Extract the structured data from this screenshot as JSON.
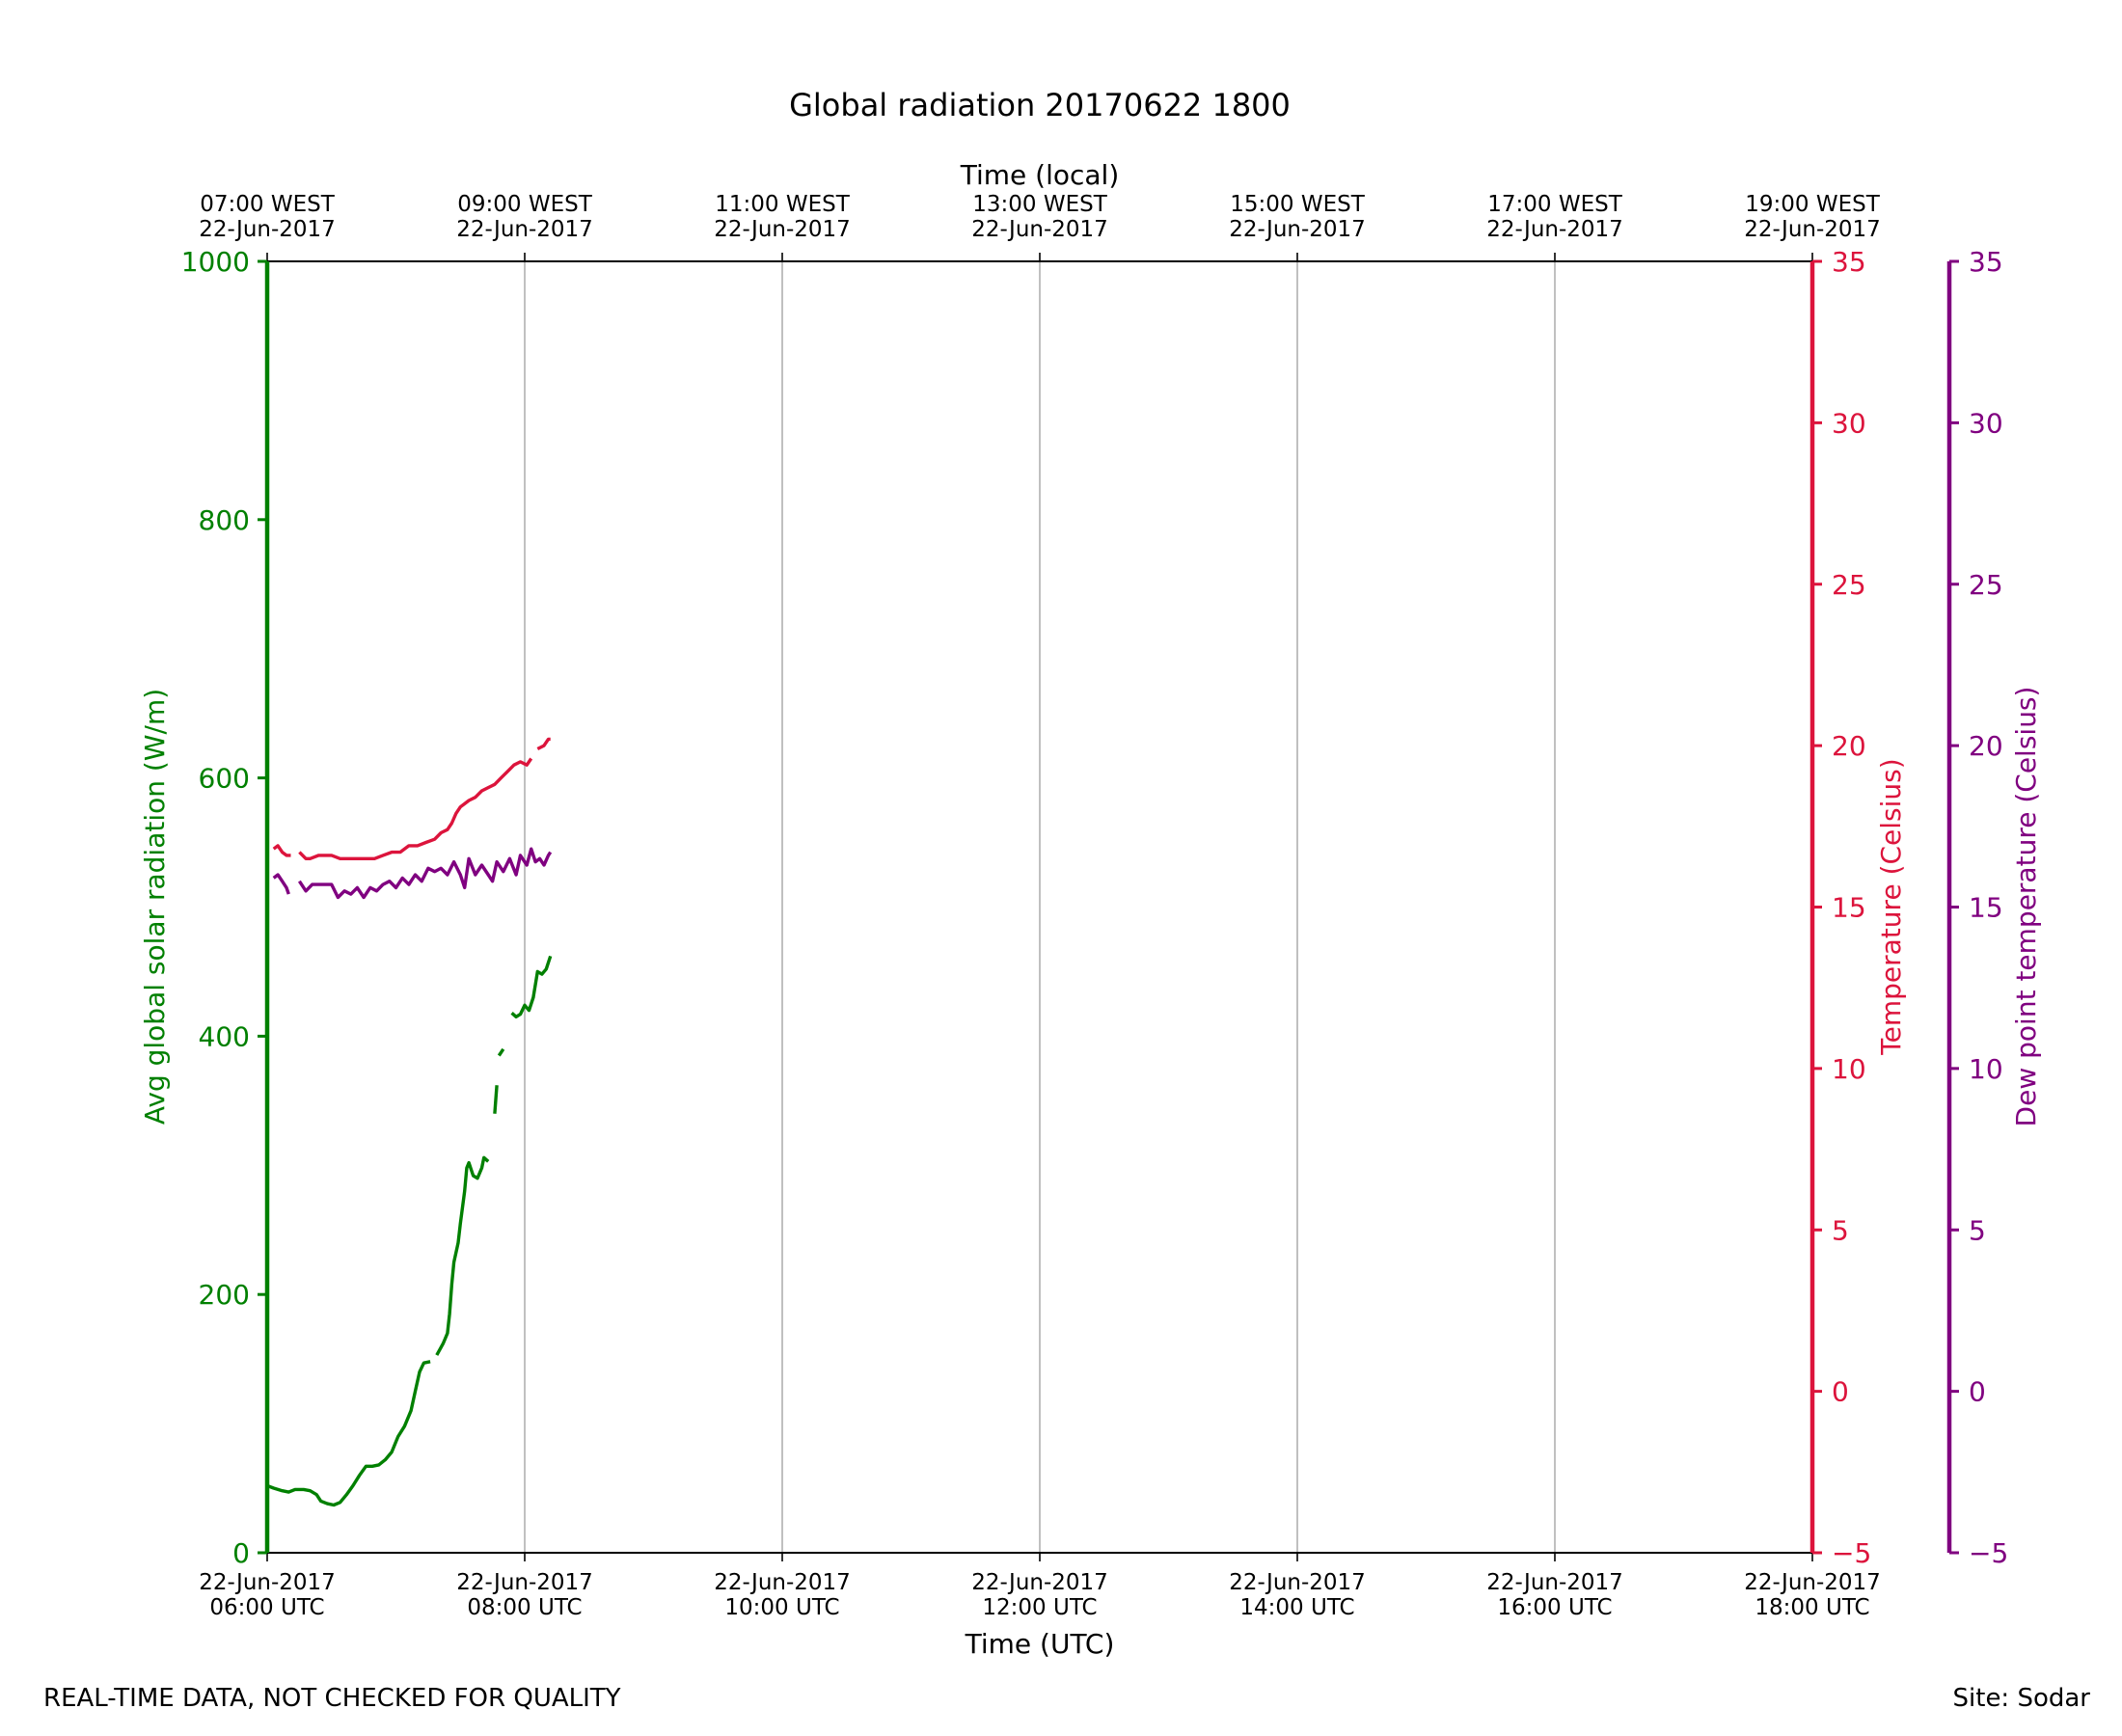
{
  "chart_data": {
    "type": "line",
    "title": "Global radiation 20170622 1800",
    "xlabel": "Time (UTC)",
    "x2label": "Time (local)",
    "x_ticks": [
      {
        "utc": [
          "22-Jun-2017",
          "06:00 UTC"
        ],
        "local": [
          "07:00 WEST",
          "22-Jun-2017"
        ]
      },
      {
        "utc": [
          "22-Jun-2017",
          "08:00 UTC"
        ],
        "local": [
          "09:00 WEST",
          "22-Jun-2017"
        ]
      },
      {
        "utc": [
          "22-Jun-2017",
          "10:00 UTC"
        ],
        "local": [
          "11:00 WEST",
          "22-Jun-2017"
        ]
      },
      {
        "utc": [
          "22-Jun-2017",
          "12:00 UTC"
        ],
        "local": [
          "13:00 WEST",
          "22-Jun-2017"
        ]
      },
      {
        "utc": [
          "22-Jun-2017",
          "14:00 UTC"
        ],
        "local": [
          "15:00 WEST",
          "22-Jun-2017"
        ]
      },
      {
        "utc": [
          "22-Jun-2017",
          "16:00 UTC"
        ],
        "local": [
          "17:00 WEST",
          "22-Jun-2017"
        ]
      },
      {
        "utc": [
          "22-Jun-2017",
          "18:00 UTC"
        ],
        "local": [
          "19:00 WEST",
          "22-Jun-2017"
        ]
      }
    ],
    "xlim": [
      "06:00",
      "18:00"
    ],
    "grid": "vertical",
    "axes": {
      "left": {
        "label": "Avg global solar radiation (W/m)",
        "range": [
          0,
          1000
        ],
        "ticks": [
          0,
          200,
          400,
          600,
          800,
          1000
        ],
        "color": "#008000"
      },
      "right1": {
        "label": "Temperature (Celsius)",
        "range": [
          -5,
          35
        ],
        "ticks": [
          -5,
          0,
          5,
          10,
          15,
          20,
          25,
          30,
          35
        ],
        "tick_labels": [
          "−5",
          "0",
          "5",
          "10",
          "15",
          "20",
          "25",
          "30",
          "35"
        ],
        "color": "#dc143c"
      },
      "right2": {
        "label": "Dew point temperature (Celsius)",
        "range": [
          -5,
          35
        ],
        "ticks": [
          -5,
          0,
          5,
          10,
          15,
          20,
          25,
          30,
          35
        ],
        "tick_labels": [
          "−5",
          "0",
          "5",
          "10",
          "15",
          "20",
          "25",
          "30",
          "35"
        ],
        "color": "#800080"
      }
    },
    "series": [
      {
        "axis": "left",
        "color": "#008000",
        "segments": [
          [
            [
              "06:00",
              52
            ],
            [
              "06:03",
              50
            ],
            [
              "06:07",
              48
            ],
            [
              "06:10",
              47
            ],
            [
              "06:13",
              49
            ],
            [
              "06:17",
              49
            ],
            [
              "06:20",
              48
            ],
            [
              "06:23",
              45
            ],
            [
              "06:25",
              40
            ],
            [
              "06:28",
              38
            ],
            [
              "06:31",
              37
            ],
            [
              "06:34",
              39
            ],
            [
              "06:37",
              45
            ],
            [
              "06:40",
              52
            ],
            [
              "06:43",
              60
            ],
            [
              "06:46",
              67
            ],
            [
              "06:49",
              67
            ],
            [
              "06:52",
              68
            ],
            [
              "06:55",
              72
            ],
            [
              "06:58",
              78
            ],
            [
              "07:01",
              90
            ],
            [
              "07:04",
              98
            ],
            [
              "07:07",
              110
            ],
            [
              "07:09",
              125
            ],
            [
              "07:11",
              140
            ],
            [
              "07:13",
              147
            ],
            [
              "07:16",
              148
            ]
          ],
          [
            [
              "07:19",
              153
            ],
            [
              "07:22",
              162
            ],
            [
              "07:24",
              170
            ],
            [
              "07:25",
              185
            ],
            [
              "07:26",
              208
            ],
            [
              "07:27",
              225
            ],
            [
              "07:29",
              240
            ],
            [
              "07:30",
              255
            ],
            [
              "07:32",
              280
            ],
            [
              "07:33",
              298
            ],
            [
              "07:34",
              302
            ],
            [
              "07:36",
              292
            ],
            [
              "07:38",
              290
            ],
            [
              "07:40",
              298
            ],
            [
              "07:41",
              306
            ],
            [
              "07:43",
              303
            ]
          ],
          [
            [
              "07:46",
              340
            ],
            [
              "07:47",
              362
            ]
          ],
          [
            [
              "07:48",
              385
            ],
            [
              "07:50",
              390
            ]
          ],
          [
            [
              "07:54",
              418
            ],
            [
              "07:56",
              415
            ],
            [
              "07:58",
              417
            ],
            [
              "08:00",
              424
            ],
            [
              "08:02",
              420
            ],
            [
              "08:04",
              430
            ],
            [
              "08:06",
              450
            ],
            [
              "08:08",
              448
            ],
            [
              "08:10",
              452
            ],
            [
              "08:12",
              462
            ]
          ]
        ]
      },
      {
        "axis": "right1",
        "color": "#dc143c",
        "segments": [
          [
            [
              "06:03",
              16.8
            ],
            [
              "06:05",
              16.9
            ],
            [
              "06:07",
              16.7
            ],
            [
              "06:09",
              16.6
            ],
            [
              "06:11",
              16.6
            ]
          ],
          [
            [
              "06:15",
              16.7
            ],
            [
              "06:18",
              16.5
            ],
            [
              "06:20",
              16.5
            ],
            [
              "06:24",
              16.6
            ],
            [
              "06:30",
              16.6
            ],
            [
              "06:34",
              16.5
            ],
            [
              "06:38",
              16.5
            ],
            [
              "06:42",
              16.5
            ],
            [
              "06:46",
              16.5
            ],
            [
              "06:50",
              16.5
            ],
            [
              "06:54",
              16.6
            ],
            [
              "06:58",
              16.7
            ],
            [
              "07:02",
              16.7
            ],
            [
              "07:06",
              16.9
            ],
            [
              "07:10",
              16.9
            ],
            [
              "07:14",
              17.0
            ],
            [
              "07:18",
              17.1
            ],
            [
              "07:21",
              17.3
            ],
            [
              "07:24",
              17.4
            ],
            [
              "07:26",
              17.6
            ],
            [
              "07:28",
              17.9
            ],
            [
              "07:30",
              18.1
            ],
            [
              "07:32",
              18.2
            ],
            [
              "07:34",
              18.3
            ],
            [
              "07:37",
              18.4
            ],
            [
              "07:40",
              18.6
            ],
            [
              "07:43",
              18.7
            ],
            [
              "07:46",
              18.8
            ],
            [
              "07:49",
              19.0
            ],
            [
              "07:52",
              19.2
            ],
            [
              "07:55",
              19.4
            ],
            [
              "07:58",
              19.5
            ],
            [
              "08:01",
              19.4
            ],
            [
              "08:03",
              19.6
            ]
          ],
          [
            [
              "08:06",
              19.9
            ],
            [
              "08:09",
              20.0
            ],
            [
              "08:11",
              20.2
            ],
            [
              "08:12",
              20.2
            ]
          ]
        ]
      },
      {
        "axis": "right2",
        "color": "#800080",
        "segments": [
          [
            [
              "06:03",
              15.9
            ],
            [
              "06:05",
              16.0
            ],
            [
              "06:07",
              15.8
            ],
            [
              "06:09",
              15.6
            ],
            [
              "06:10",
              15.4
            ]
          ],
          [
            [
              "06:15",
              15.8
            ],
            [
              "06:18",
              15.5
            ],
            [
              "06:21",
              15.7
            ],
            [
              "06:24",
              15.7
            ],
            [
              "06:27",
              15.7
            ],
            [
              "06:30",
              15.7
            ],
            [
              "06:33",
              15.3
            ],
            [
              "06:36",
              15.5
            ],
            [
              "06:39",
              15.4
            ],
            [
              "06:42",
              15.6
            ],
            [
              "06:45",
              15.3
            ],
            [
              "06:48",
              15.6
            ],
            [
              "06:51",
              15.5
            ],
            [
              "06:54",
              15.7
            ],
            [
              "06:57",
              15.8
            ],
            [
              "07:00",
              15.6
            ],
            [
              "07:03",
              15.9
            ],
            [
              "07:06",
              15.7
            ],
            [
              "07:09",
              16.0
            ],
            [
              "07:12",
              15.8
            ],
            [
              "07:15",
              16.2
            ],
            [
              "07:18",
              16.1
            ],
            [
              "07:21",
              16.2
            ],
            [
              "07:24",
              16.0
            ],
            [
              "07:27",
              16.4
            ],
            [
              "07:30",
              16.0
            ],
            [
              "07:32",
              15.6
            ],
            [
              "07:34",
              16.5
            ],
            [
              "07:37",
              16.0
            ],
            [
              "07:40",
              16.3
            ],
            [
              "07:43",
              16.0
            ],
            [
              "07:45",
              15.8
            ],
            [
              "07:47",
              16.4
            ],
            [
              "07:50",
              16.1
            ],
            [
              "07:53",
              16.5
            ],
            [
              "07:56",
              16.0
            ],
            [
              "07:58",
              16.6
            ],
            [
              "08:01",
              16.3
            ],
            [
              "08:03",
              16.8
            ],
            [
              "08:05",
              16.4
            ],
            [
              "08:07",
              16.5
            ],
            [
              "08:09",
              16.3
            ],
            [
              "08:11",
              16.6
            ],
            [
              "08:12",
              16.7
            ]
          ]
        ]
      }
    ]
  },
  "footer": {
    "note": "REAL-TIME DATA, NOT CHECKED FOR QUALITY",
    "site": "Site: Sodar"
  }
}
